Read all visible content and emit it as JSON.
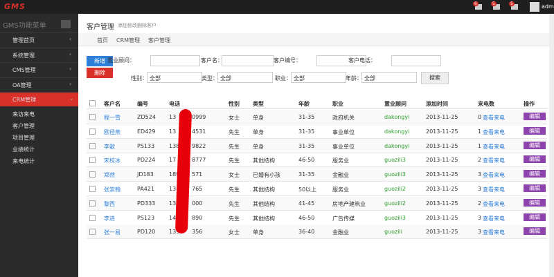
{
  "topbar": {
    "logo": "GMS",
    "badges": [
      "6",
      "5",
      "5"
    ],
    "user": "admin"
  },
  "sidebar": {
    "title": "GMS功能菜单",
    "menu": [
      "管理首页",
      "系统管理",
      "CMS管理",
      "OA管理",
      "CRM管理"
    ],
    "active": 4,
    "submenu": [
      "来访来电",
      "客户管理",
      "项目管理",
      "业绩统计",
      "来电统计"
    ]
  },
  "header": {
    "title": "客户管理",
    "subtitle": "添加修改删除客户"
  },
  "breadcrumb": [
    "首页",
    "CRM管理",
    "客户管理"
  ],
  "buttons": {
    "add": "新增",
    "delete": "删除",
    "search": "搜索"
  },
  "filters": {
    "text": [
      "置业顾问：",
      "客户名：",
      "客户编号：",
      "客户电话："
    ],
    "select": [
      {
        "label": "性别：",
        "value": "全部"
      },
      {
        "label": "类型：",
        "value": "全部"
      },
      {
        "label": "职业：",
        "value": "全部"
      },
      {
        "label": "年龄：",
        "value": "全部"
      }
    ]
  },
  "table": {
    "columns": [
      "客户名",
      "编号",
      "电话",
      "性别",
      "类型",
      "年龄",
      "职业",
      "置业顾问",
      "添加时间",
      "来电数",
      "操作"
    ],
    "link": "查看来电",
    "edit": "编辑",
    "rows": [
      [
        "程一雪",
        "ZD524",
        "13",
        "0999",
        "女士",
        "单身",
        "31-35",
        "政府机关",
        "dakongyi",
        "2013-11-25",
        0
      ],
      [
        "欧径燕",
        "ED429",
        "13",
        "4531",
        "先生",
        "单身",
        "31-35",
        "事业单位",
        "dakongyi",
        "2013-11-25",
        1
      ],
      [
        "李歌",
        "PS133",
        "138",
        "9822",
        "先生",
        "单身",
        "31-35",
        "事业单位",
        "dakongyi",
        "2013-11-25",
        1
      ],
      [
        "宋校冰",
        "PD224",
        "17",
        "8777",
        "先生",
        "其他结构",
        "46-50",
        "服务业",
        "guozili3",
        "2013-11-25",
        2
      ],
      [
        "郑然",
        "JD183",
        "189",
        "571",
        "女士",
        "已婚有小孩",
        "31-35",
        "金融业",
        "guozili3",
        "2013-11-25",
        3
      ],
      [
        "张崇翰",
        "PA421",
        "13",
        "765",
        "先生",
        "其他结构",
        "50以上",
        "服务业",
        "guozili2",
        "2013-11-25",
        3
      ],
      [
        "黎西",
        "PD333",
        "134",
        "000",
        "先生",
        "其他结构",
        "41-45",
        "房地产建筑业",
        "guozili2",
        "2013-11-25",
        2
      ],
      [
        "李进",
        "PS123",
        "145",
        "890",
        "先生",
        "其他结构",
        "46-50",
        "广告传媒",
        "guozili3",
        "2013-11-25",
        3
      ],
      [
        "张一易",
        "PD120",
        "139",
        "356",
        "女士",
        "单身",
        "36-40",
        "金融业",
        "guozili",
        "2013-11-25",
        3
      ]
    ]
  }
}
